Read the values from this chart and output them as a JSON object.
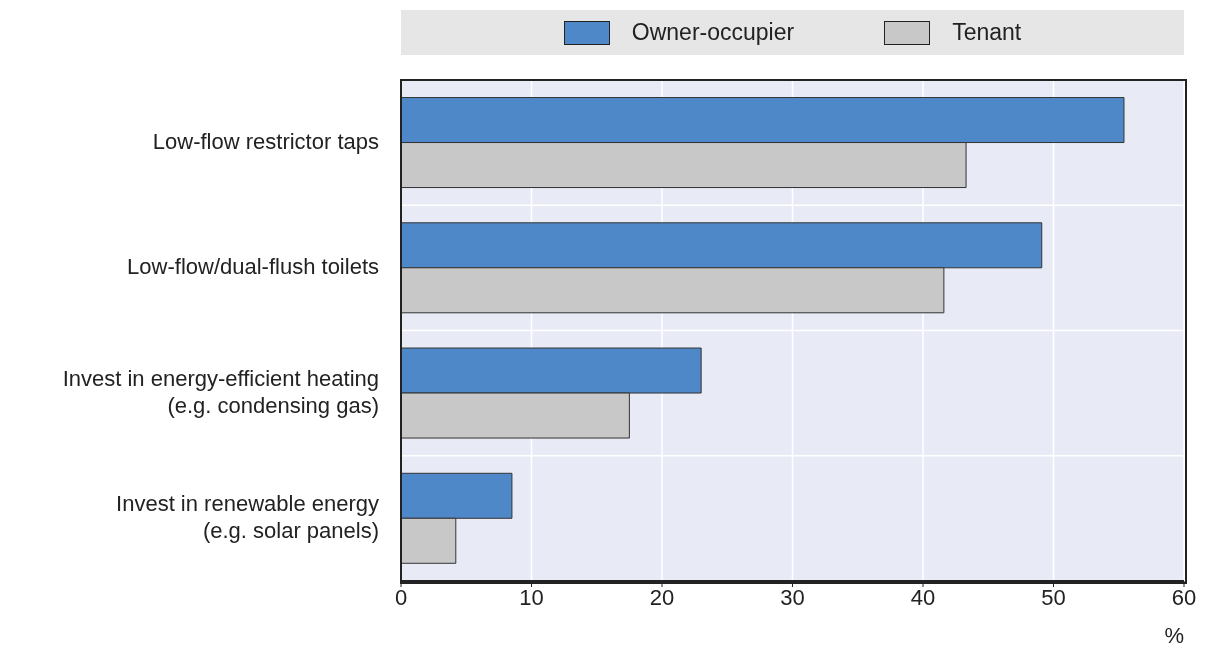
{
  "chart_data": {
    "type": "bar",
    "orientation": "horizontal",
    "categories": [
      "Low-flow restrictor taps",
      "Low-flow/dual-flush toilets",
      "Invest in energy-efficient heating\n(e.g. condensing gas)",
      "Invest in renewable energy\n(e.g. solar panels)"
    ],
    "series": [
      {
        "name": "Owner-occupier",
        "color": "#4f88c8",
        "values": [
          55.4,
          49.1,
          23.0,
          8.5
        ]
      },
      {
        "name": "Tenant",
        "color": "#c8c8c8",
        "values": [
          43.3,
          41.6,
          17.5,
          4.2
        ]
      }
    ],
    "xlim": [
      0,
      60
    ],
    "xticks": [
      0,
      10,
      20,
      30,
      40,
      50,
      60
    ],
    "xlabel": "%",
    "grid": true,
    "legend": "top"
  }
}
